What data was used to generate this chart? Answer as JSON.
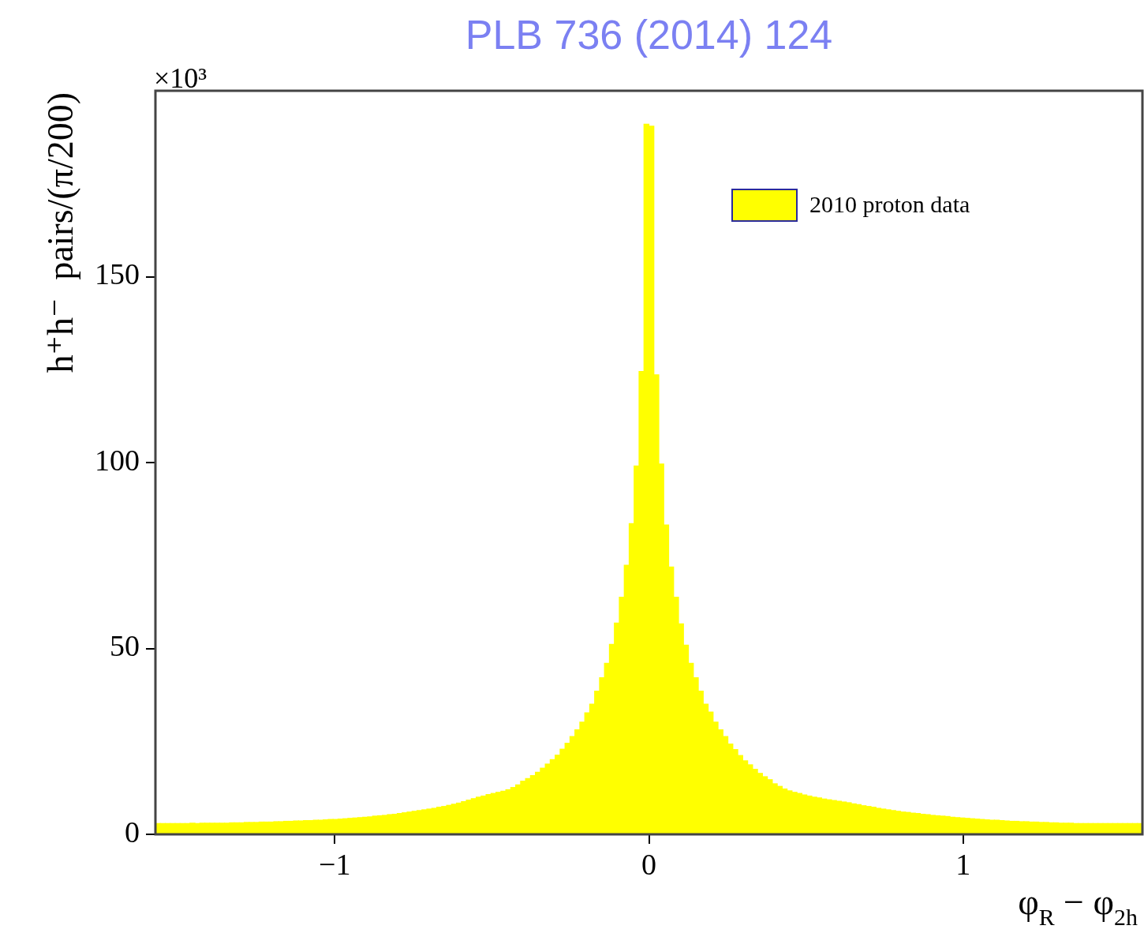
{
  "chart_data": {
    "type": "histogram",
    "title": "PLB 736 (2014) 124",
    "xlabel": "φ$_{R}$ − φ$_{2h}$",
    "ylabel": "h⁺h⁻  pairs/(π/200)",
    "annotations": [
      "×10³"
    ],
    "bins": [
      -1.5708,
      -1.5551,
      -1.5394,
      -1.5237,
      -1.508,
      -1.4923,
      -1.4765,
      -1.4608,
      -1.4451,
      -1.4294,
      -1.4137,
      -1.398,
      -1.3823,
      -1.3666,
      -1.3509,
      -1.3352,
      -1.3195,
      -1.3038,
      -1.2881,
      -1.2723,
      -1.2566,
      -1.2409,
      -1.2252,
      -1.2095,
      -1.1938,
      -1.1781,
      -1.1624,
      -1.1467,
      -1.131,
      -1.1153,
      -1.0996,
      -1.0838,
      -1.0681,
      -1.0524,
      -1.0367,
      -1.021,
      -1.0053,
      -0.9896,
      -0.9739,
      -0.9582,
      -0.9425,
      -0.9268,
      -0.9111,
      -0.8954,
      -0.8796,
      -0.8639,
      -0.8482,
      -0.8325,
      -0.8168,
      -0.8011,
      -0.7854,
      -0.7697,
      -0.754,
      -0.7383,
      -0.7226,
      -0.7069,
      -0.6912,
      -0.6754,
      -0.6597,
      -0.644,
      -0.6283,
      -0.6126,
      -0.5969,
      -0.5812,
      -0.5655,
      -0.5498,
      -0.5341,
      -0.5184,
      -0.5027,
      -0.4869,
      -0.4712,
      -0.4555,
      -0.4398,
      -0.4241,
      -0.4084,
      -0.3927,
      -0.377,
      -0.3613,
      -0.3456,
      -0.3299,
      -0.3142,
      -0.2985,
      -0.2827,
      -0.267,
      -0.2513,
      -0.2356,
      -0.2199,
      -0.2042,
      -0.1885,
      -0.1728,
      -0.1571,
      -0.1414,
      -0.1257,
      -0.11,
      -0.0942,
      -0.0785,
      -0.0628,
      -0.0471,
      -0.0314,
      -0.0157,
      0,
      0.0157,
      0.0314,
      0.0471,
      0.0628,
      0.0785,
      0.0942,
      0.11,
      0.1257,
      0.1414,
      0.1571,
      0.1728,
      0.1885,
      0.2042,
      0.2199,
      0.2356,
      0.2513,
      0.267,
      0.2827,
      0.2985,
      0.3142,
      0.3299,
      0.3456,
      0.3613,
      0.377,
      0.3927,
      0.4084,
      0.4241,
      0.4398,
      0.4555,
      0.4712,
      0.4869,
      0.5027,
      0.5184,
      0.5341,
      0.5498,
      0.5655,
      0.5812,
      0.5969,
      0.6126,
      0.6283,
      0.644,
      0.6597,
      0.6754,
      0.6912,
      0.7069,
      0.7226,
      0.7383,
      0.754,
      0.7697,
      0.7854,
      0.8011,
      0.8168,
      0.8325,
      0.8482,
      0.8639,
      0.8796,
      0.8954,
      0.9111,
      0.9268,
      0.9425,
      0.9582,
      0.9739,
      0.9896,
      1.0053,
      1.021,
      1.0367,
      1.0524,
      1.0681,
      1.0838,
      1.0996,
      1.1153,
      1.131,
      1.1467,
      1.1624,
      1.1781,
      1.1938,
      1.2095,
      1.2252,
      1.2409,
      1.2566,
      1.2723,
      1.2881,
      1.3038,
      1.3195,
      1.3352,
      1.3509,
      1.3666,
      1.3823,
      1.398,
      1.4137,
      1.4294,
      1.4451,
      1.4608,
      1.4765,
      1.4923,
      1.508,
      1.5237,
      1.5394,
      1.5551,
      1.5708
    ],
    "series": [
      {
        "name": "2010 proton data",
        "color": "#ffff00",
        "values": [
          2.9,
          2.9,
          2.9,
          2.9,
          2.9,
          2.9,
          2.9,
          3.0,
          2.9,
          3.0,
          3.0,
          3.0,
          3.0,
          3.0,
          3.0,
          3.1,
          3.1,
          3.1,
          3.2,
          3.2,
          3.2,
          3.3,
          3.3,
          3.3,
          3.4,
          3.4,
          3.5,
          3.5,
          3.6,
          3.6,
          3.7,
          3.7,
          3.8,
          3.8,
          3.9,
          4.0,
          4.0,
          4.1,
          4.2,
          4.3,
          4.4,
          4.5,
          4.6,
          4.7,
          4.9,
          5.0,
          5.1,
          5.3,
          5.4,
          5.6,
          5.8,
          6.0,
          6.2,
          6.4,
          6.6,
          6.8,
          7.0,
          7.3,
          7.5,
          7.8,
          8.1,
          8.4,
          8.8,
          9.2,
          9.6,
          10.0,
          10.3,
          10.7,
          11.0,
          11.3,
          11.6,
          12.0,
          12.6,
          13.3,
          14.3,
          15.0,
          15.8,
          16.7,
          17.8,
          18.9,
          20.1,
          21.3,
          22.9,
          24.5,
          26.3,
          28.1,
          30.2,
          32.7,
          35.0,
          38.5,
          42.1,
          46.0,
          51.1,
          56.8,
          63.8,
          72.4,
          83.6,
          99.1,
          124.5,
          191.0,
          190.5,
          123.6,
          99.6,
          83.2,
          71.9,
          63.8,
          56.6,
          50.9,
          46.0,
          42.1,
          38.5,
          35.0,
          32.9,
          30.2,
          28.1,
          26.3,
          24.3,
          22.8,
          21.2,
          19.8,
          18.7,
          17.5,
          16.4,
          15.5,
          14.7,
          13.6,
          12.9,
          12.2,
          11.7,
          11.3,
          11.0,
          10.6,
          10.3,
          10.0,
          9.8,
          9.5,
          9.3,
          9.1,
          8.9,
          8.7,
          8.5,
          8.2,
          8.0,
          7.7,
          7.5,
          7.3,
          7.0,
          6.8,
          6.6,
          6.4,
          6.2,
          6.0,
          5.9,
          5.7,
          5.6,
          5.4,
          5.3,
          5.1,
          5.0,
          4.9,
          4.8,
          4.6,
          4.5,
          4.4,
          4.3,
          4.2,
          4.1,
          4.0,
          3.9,
          3.8,
          3.8,
          3.7,
          3.6,
          3.5,
          3.5,
          3.4,
          3.4,
          3.3,
          3.3,
          3.2,
          3.2,
          3.1,
          3.1,
          3.0,
          3.0,
          3.0,
          2.9,
          2.9,
          2.9,
          2.9,
          2.9,
          2.9,
          2.9,
          2.9,
          2.9,
          2.9,
          2.9,
          2.9,
          2.9,
          2.9
        ]
      }
    ],
    "xlim": [
      -1.5708,
      1.5708
    ],
    "xticks": [
      -1,
      0,
      1
    ],
    "ylim": [
      0,
      200
    ],
    "yticks": [
      0,
      50,
      100,
      150
    ],
    "grid": false,
    "legend": "top right"
  }
}
